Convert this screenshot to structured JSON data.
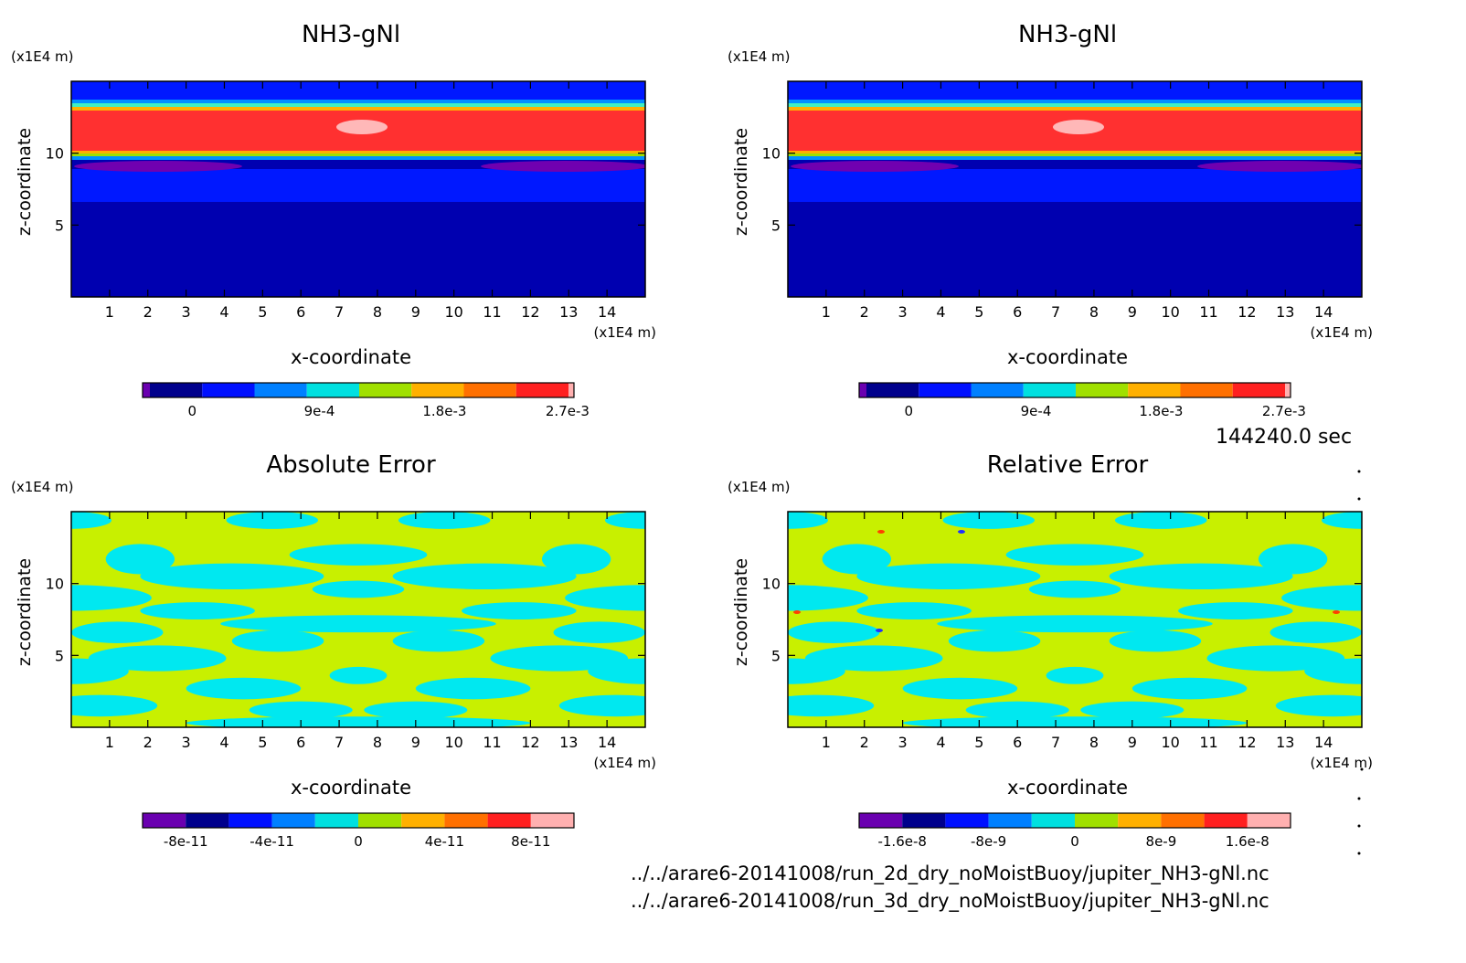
{
  "colors": {
    "blue_stops": [
      "#6a00b0",
      "#00008c",
      "#0010ff",
      "#0080ff",
      "#00e0e0",
      "#a0e000",
      "#ffb000",
      "#ff7000",
      "#ff2020",
      "#ffb0b0"
    ],
    "band_red": "#ff3030",
    "band_deep": "#0000b0",
    "band_mid": "#0018ff",
    "band_purple": "#7000b0",
    "err_a": "#00e8f0",
    "err_b": "#c8f000"
  },
  "time_label": "144240.0 sec",
  "file_paths": [
    "../../arare6-20141008/run_2d_dry_noMoistBuoy/jupiter_NH3-gNl.nc",
    "../../arare6-20141008/run_3d_dry_noMoistBuoy/jupiter_NH3-gNl.nc"
  ],
  "chart_data": [
    {
      "type": "heatmap",
      "title": "NH3-gNl",
      "xlabel": "x-coordinate",
      "ylabel": "z-coordinate",
      "x_unit": "(x1E4 m)",
      "y_unit": "(x1E4 m)",
      "x_ticks": [
        "1",
        "2",
        "3",
        "4",
        "5",
        "6",
        "7",
        "8",
        "9",
        "10",
        "11",
        "12",
        "13",
        "14"
      ],
      "y_ticks": [
        "5",
        "10"
      ],
      "xlim": [
        0,
        15
      ],
      "ylim": [
        0,
        15
      ],
      "colorbar_labels": [
        "0",
        "9e-4",
        "1.8e-3",
        "2.7e-3"
      ]
    },
    {
      "type": "heatmap",
      "title": "NH3-gNl",
      "xlabel": "x-coordinate",
      "ylabel": "z-coordinate",
      "x_unit": "(x1E4 m)",
      "y_unit": "(x1E4 m)",
      "x_ticks": [
        "1",
        "2",
        "3",
        "4",
        "5",
        "6",
        "7",
        "8",
        "9",
        "10",
        "11",
        "12",
        "13",
        "14"
      ],
      "y_ticks": [
        "5",
        "10"
      ],
      "xlim": [
        0,
        15
      ],
      "ylim": [
        0,
        15
      ],
      "colorbar_labels": [
        "0",
        "9e-4",
        "1.8e-3",
        "2.7e-3"
      ]
    },
    {
      "type": "heatmap",
      "title": "Absolute Error",
      "xlabel": "x-coordinate",
      "ylabel": "z-coordinate",
      "x_unit": "(x1E4 m)",
      "y_unit": "(x1E4 m)",
      "x_ticks": [
        "1",
        "2",
        "3",
        "4",
        "5",
        "6",
        "7",
        "8",
        "9",
        "10",
        "11",
        "12",
        "13",
        "14"
      ],
      "y_ticks": [
        "5",
        "10"
      ],
      "xlim": [
        0,
        15
      ],
      "ylim": [
        0,
        15
      ],
      "colorbar_labels": [
        "-8e-11",
        "-4e-11",
        "0",
        "4e-11",
        "8e-11"
      ]
    },
    {
      "type": "heatmap",
      "title": "Relative Error",
      "xlabel": "x-coordinate",
      "ylabel": "z-coordinate",
      "x_unit": "(x1E4 m)",
      "y_unit": "(x1E4 m)",
      "x_ticks": [
        "1",
        "2",
        "3",
        "4",
        "5",
        "6",
        "7",
        "8",
        "9",
        "10",
        "11",
        "12",
        "13",
        "14"
      ],
      "y_ticks": [
        "5",
        "10"
      ],
      "xlim": [
        0,
        15
      ],
      "ylim": [
        0,
        15
      ],
      "colorbar_labels": [
        "-1.6e-8",
        "-8e-9",
        "0",
        "8e-9",
        "1.6e-8"
      ]
    }
  ]
}
